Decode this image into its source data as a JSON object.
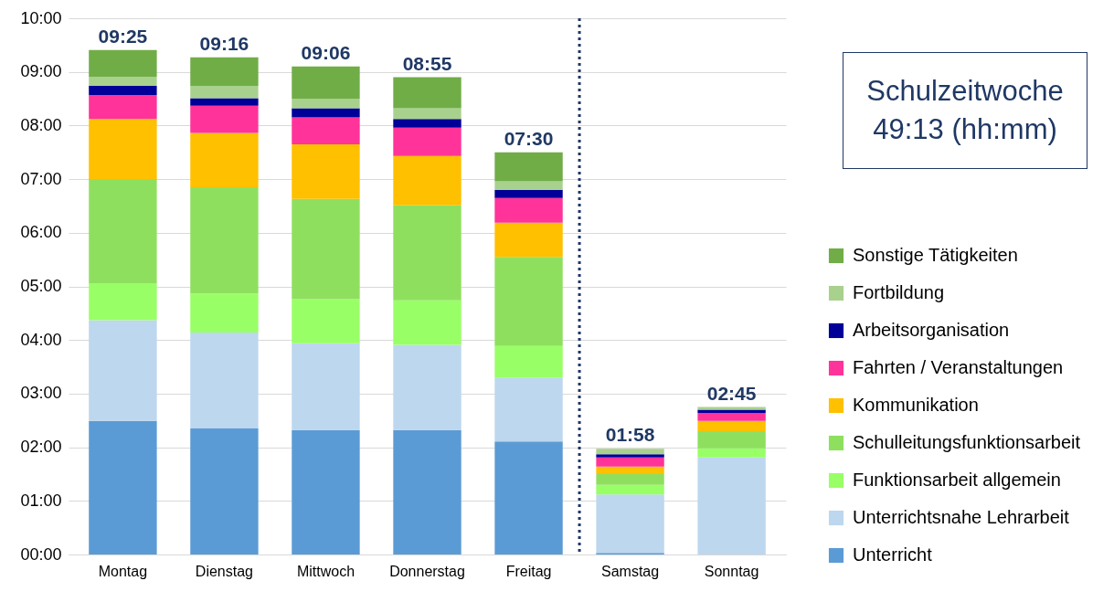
{
  "chart_data": {
    "type": "bar",
    "stacked": true,
    "categories": [
      "Montag",
      "Dienstag",
      "Mittwoch",
      "Donnerstag",
      "Freitag",
      "Samstag",
      "Sonntag"
    ],
    "series": [
      {
        "name": "Unterricht",
        "color": "#5b9bd5",
        "values": [
          2.49,
          2.35,
          2.32,
          2.32,
          2.11,
          0.03,
          0
        ]
      },
      {
        "name": "Unterrichtsnahe Lehrarbeit",
        "color": "#bdd7ee",
        "values": [
          1.88,
          1.79,
          1.62,
          1.59,
          1.19,
          1.09,
          1.81
        ]
      },
      {
        "name": "Funktionsarbeit allgemein",
        "color": "#99ff66",
        "values": [
          0.69,
          0.73,
          0.82,
          0.83,
          0.59,
          0.18,
          0.17
        ]
      },
      {
        "name": "Schulleitungsfunktionsarbeit",
        "color": "#8fdf5f",
        "values": [
          1.94,
          1.98,
          1.87,
          1.77,
          1.66,
          0.2,
          0.32
        ]
      },
      {
        "name": "Kommunikation",
        "color": "#ffc000",
        "values": [
          1.12,
          1.01,
          1.02,
          0.92,
          0.64,
          0.14,
          0.19
        ]
      },
      {
        "name": "Fahrten / Veranstaltungen",
        "color": "#ff3399",
        "values": [
          0.45,
          0.51,
          0.5,
          0.53,
          0.46,
          0.17,
          0.15
        ]
      },
      {
        "name": "Arbeitsorganisation",
        "color": "#000099",
        "values": [
          0.17,
          0.14,
          0.17,
          0.16,
          0.15,
          0.06,
          0.06
        ]
      },
      {
        "name": "Fortbildung",
        "color": "#a9d18e",
        "values": [
          0.17,
          0.23,
          0.18,
          0.2,
          0.16,
          0.1,
          0.05
        ]
      },
      {
        "name": "Sonstige Tätigkeiten",
        "color": "#70ad47",
        "values": [
          0.5,
          0.53,
          0.6,
          0.58,
          0.54,
          0,
          0
        ]
      }
    ],
    "totals": [
      "09:25",
      "09:16",
      "09:06",
      "08:55",
      "07:30",
      "01:58",
      "02:45"
    ],
    "ylim": [
      0,
      10
    ],
    "yticks": [
      {
        "value": 0,
        "label": "00:00"
      },
      {
        "value": 1,
        "label": "01:00"
      },
      {
        "value": 2,
        "label": "02:00"
      },
      {
        "value": 3,
        "label": "03:00"
      },
      {
        "value": 4,
        "label": "04:00"
      },
      {
        "value": 5,
        "label": "05:00"
      },
      {
        "value": 6,
        "label": "06:00"
      },
      {
        "value": 7,
        "label": "07:00"
      },
      {
        "value": 8,
        "label": "08:00"
      },
      {
        "value": 9,
        "label": "09:00"
      },
      {
        "value": 10,
        "label": "10:00"
      }
    ],
    "grid": "y",
    "legend": "right",
    "ref_lines": [
      {
        "axis": "x",
        "value": "Samstag",
        "color": "#1f3864",
        "line_style": "dotted"
      }
    ],
    "annotations": [
      "Schulzeitwoche",
      "49:13 (hh:mm)"
    ]
  }
}
